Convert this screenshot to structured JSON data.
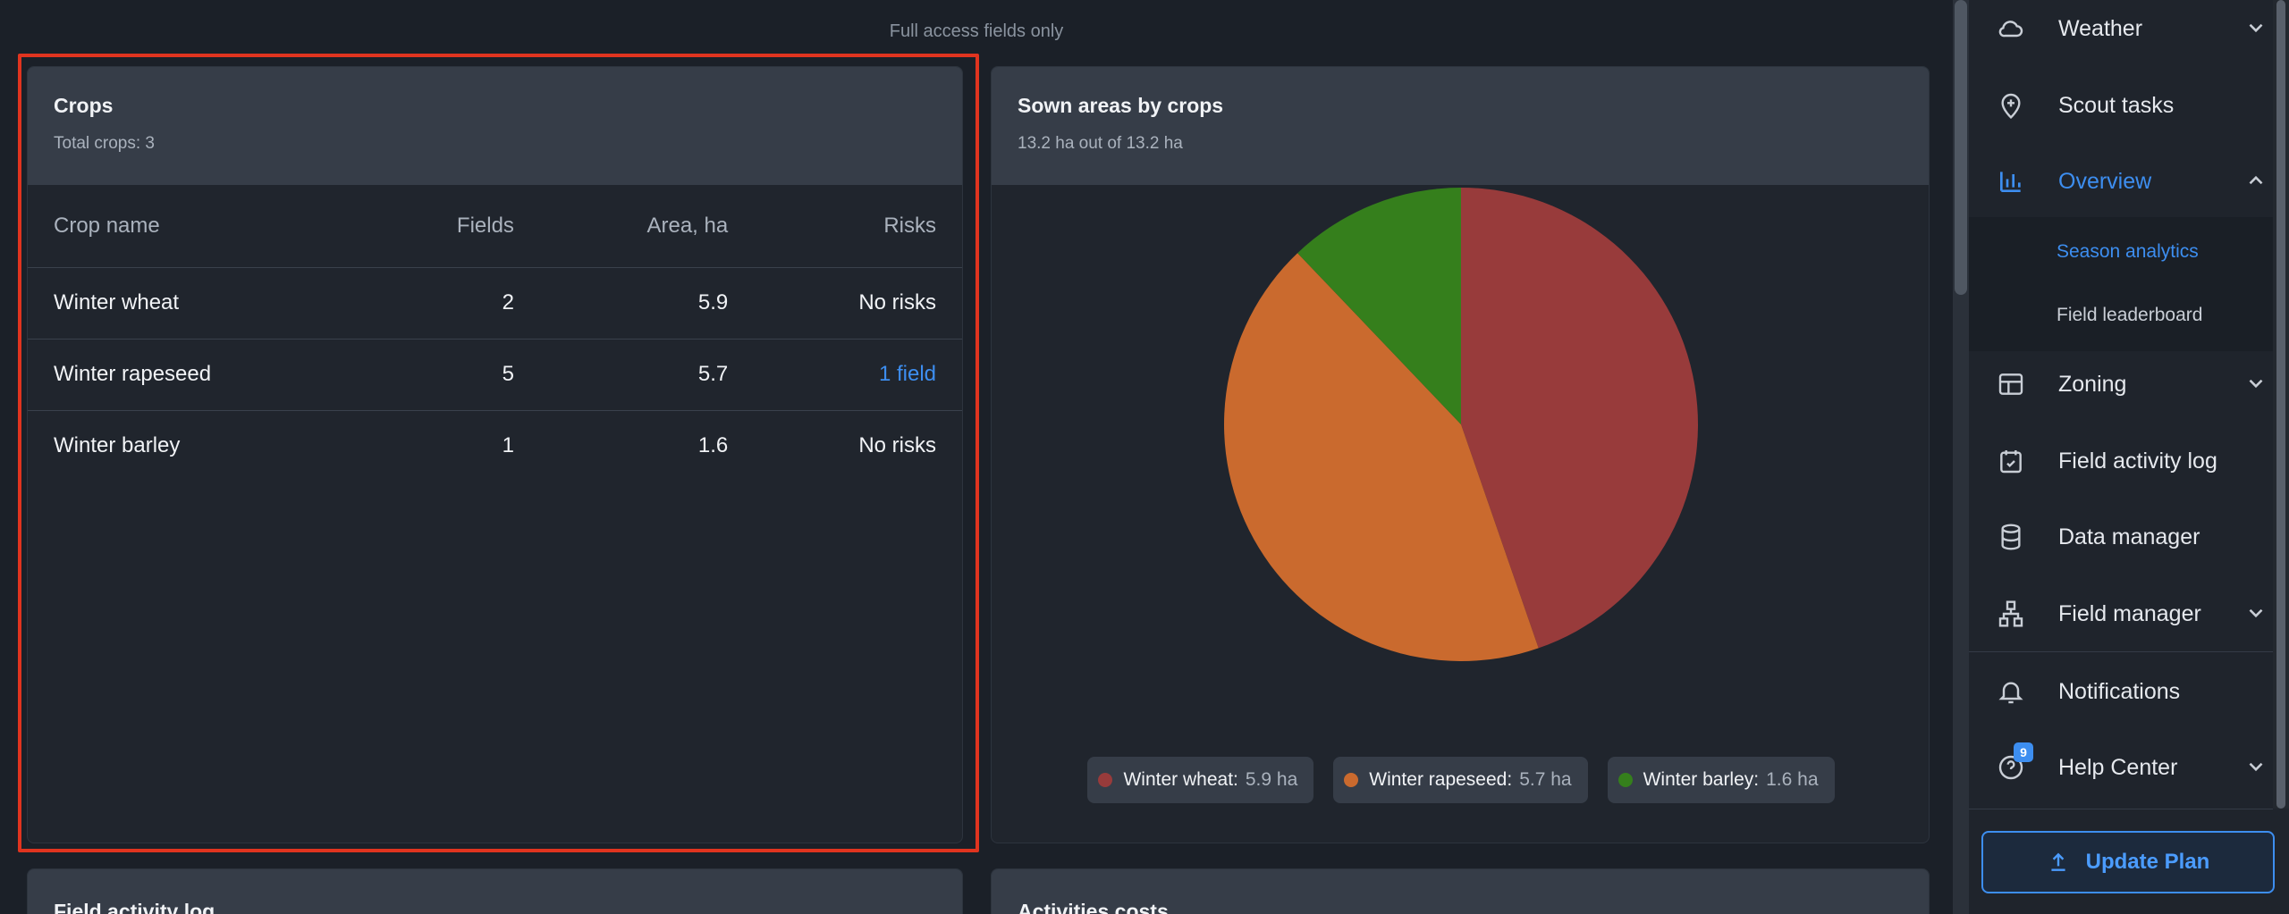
{
  "notice": "Full access fields only",
  "crops_card": {
    "title": "Crops",
    "subtitle": "Total crops: 3",
    "columns": [
      "Crop name",
      "Fields",
      "Area, ha",
      "Risks"
    ],
    "rows": [
      {
        "name": "Winter wheat",
        "fields": "2",
        "area": "5.9",
        "risks": "No risks"
      },
      {
        "name": "Winter rapeseed",
        "fields": "5",
        "area": "5.7",
        "risks": "1 field"
      },
      {
        "name": "Winter barley",
        "fields": "1",
        "area": "1.6",
        "risks": "No risks"
      }
    ]
  },
  "sown_card": {
    "title": "Sown areas by crops",
    "subtitle": "13.2 ha out of 13.2 ha",
    "legend": [
      {
        "label": "Winter wheat:",
        "value": "5.9 ha",
        "color": "#983b3b"
      },
      {
        "label": "Winter rapeseed:",
        "value": "5.7 ha",
        "color": "#ca6a2e"
      },
      {
        "label": "Winter barley:",
        "value": "1.6 ha",
        "color": "#357f1c"
      }
    ]
  },
  "chart_data": {
    "type": "pie",
    "categories": [
      "Winter wheat",
      "Winter rapeseed",
      "Winter barley"
    ],
    "values": [
      5.9,
      5.7,
      1.6
    ],
    "units": "ha",
    "colors": [
      "#983b3b",
      "#ca6a2e",
      "#357f1c"
    ]
  },
  "log_card": {
    "title": "Field activity log"
  },
  "costs_card": {
    "title": "Activities costs"
  },
  "sidebar": {
    "items": {
      "weather": "Weather",
      "scout": "Scout tasks",
      "overview": "Overview",
      "season": "Season analytics",
      "leaderboard": "Field leaderboard",
      "zoning": "Zoning",
      "activity": "Field activity log",
      "data": "Data manager",
      "field_manager": "Field manager",
      "notifications": "Notifications",
      "help": "Help Center"
    },
    "help_badge": "9",
    "update_plan": "Update Plan"
  },
  "colors": {
    "accent": "#3d8ef0",
    "highlight": "#e0341f"
  }
}
